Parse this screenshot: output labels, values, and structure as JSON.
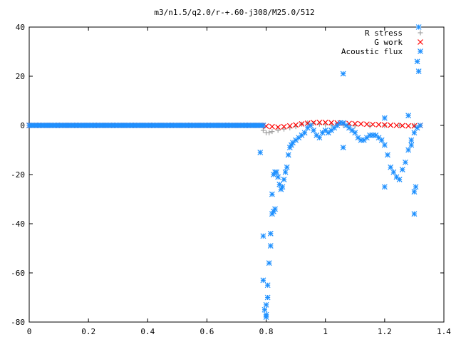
{
  "chart_data": {
    "type": "scatter",
    "title": "m3/n1.5/q2.0/r-+.60-j308/M25.0/512",
    "xlabel": "",
    "ylabel": "",
    "xlim": [
      0,
      1.4
    ],
    "ylim": [
      -80,
      40
    ],
    "grid": false,
    "legend_position": "top-right",
    "x_ticks": [
      "0",
      "0.2",
      "0.4",
      "0.6",
      "0.8",
      "1",
      "1.2",
      "1.4"
    ],
    "y_ticks": [
      "40",
      "20",
      "0",
      "-20",
      "-40",
      "-60",
      "-80"
    ],
    "series": [
      {
        "name": "R stress",
        "marker": "plus",
        "color": "#a0a0a0",
        "points": [
          [
            0.0,
            0
          ],
          [
            0.1,
            0
          ],
          [
            0.2,
            0
          ],
          [
            0.3,
            0
          ],
          [
            0.4,
            0
          ],
          [
            0.5,
            0
          ],
          [
            0.6,
            0
          ],
          [
            0.7,
            0
          ],
          [
            0.78,
            0
          ],
          [
            0.79,
            -2
          ],
          [
            0.8,
            -3
          ],
          [
            0.81,
            -3
          ],
          [
            0.82,
            -2.5
          ],
          [
            0.84,
            -2
          ],
          [
            0.86,
            -1.5
          ],
          [
            0.88,
            -1
          ],
          [
            0.9,
            -0.5
          ],
          [
            0.92,
            0.5
          ],
          [
            0.94,
            1
          ],
          [
            0.96,
            0.8
          ],
          [
            0.98,
            0.5
          ],
          [
            1.0,
            0.3
          ],
          [
            1.02,
            0.2
          ],
          [
            1.04,
            0.2
          ],
          [
            1.06,
            0.1
          ],
          [
            1.08,
            0
          ],
          [
            1.1,
            -0.2
          ],
          [
            1.15,
            -0.2
          ],
          [
            1.2,
            -0.1
          ],
          [
            1.25,
            0
          ],
          [
            1.3,
            0
          ],
          [
            1.32,
            0
          ]
        ]
      },
      {
        "name": "G work",
        "marker": "cross",
        "color": "#ff0000",
        "points": [
          [
            0.0,
            0
          ],
          [
            0.1,
            0
          ],
          [
            0.2,
            0
          ],
          [
            0.3,
            0
          ],
          [
            0.4,
            0
          ],
          [
            0.5,
            0
          ],
          [
            0.6,
            0
          ],
          [
            0.7,
            0
          ],
          [
            0.79,
            0
          ],
          [
            0.8,
            -0.3
          ],
          [
            0.82,
            -0.5
          ],
          [
            0.84,
            -0.7
          ],
          [
            0.86,
            -0.5
          ],
          [
            0.88,
            -0.2
          ],
          [
            0.9,
            0.2
          ],
          [
            0.92,
            0.6
          ],
          [
            0.94,
            0.9
          ],
          [
            0.96,
            1.1
          ],
          [
            0.98,
            1.2
          ],
          [
            1.0,
            1.2
          ],
          [
            1.02,
            1.1
          ],
          [
            1.04,
            1.0
          ],
          [
            1.06,
            0.9
          ],
          [
            1.08,
            0.8
          ],
          [
            1.1,
            0.7
          ],
          [
            1.12,
            0.6
          ],
          [
            1.14,
            0.5
          ],
          [
            1.16,
            0.4
          ],
          [
            1.18,
            0.3
          ],
          [
            1.2,
            0.2
          ],
          [
            1.22,
            0.1
          ],
          [
            1.24,
            0
          ],
          [
            1.26,
            -0.1
          ],
          [
            1.28,
            -0.2
          ],
          [
            1.3,
            -0.2
          ],
          [
            1.32,
            0
          ]
        ]
      },
      {
        "name": "Acoustic flux",
        "marker": "star",
        "color": "#1e90ff",
        "points": [
          [
            0.0,
            0
          ],
          [
            0.05,
            0
          ],
          [
            0.1,
            0
          ],
          [
            0.15,
            0
          ],
          [
            0.2,
            0
          ],
          [
            0.25,
            0
          ],
          [
            0.3,
            0
          ],
          [
            0.35,
            0
          ],
          [
            0.4,
            0
          ],
          [
            0.45,
            0
          ],
          [
            0.5,
            0
          ],
          [
            0.55,
            0
          ],
          [
            0.6,
            0
          ],
          [
            0.65,
            0
          ],
          [
            0.7,
            0
          ],
          [
            0.75,
            0
          ],
          [
            0.79,
            0
          ],
          [
            0.78,
            -11
          ],
          [
            0.79,
            -45
          ],
          [
            0.79,
            -63
          ],
          [
            0.795,
            -75
          ],
          [
            0.8,
            -78
          ],
          [
            0.8,
            -77
          ],
          [
            0.8,
            -73
          ],
          [
            0.805,
            -70
          ],
          [
            0.805,
            -65
          ],
          [
            0.81,
            -56
          ],
          [
            0.815,
            -49
          ],
          [
            0.815,
            -44
          ],
          [
            0.82,
            -36
          ],
          [
            0.825,
            -35
          ],
          [
            0.83,
            -34
          ],
          [
            0.82,
            -28
          ],
          [
            0.825,
            -20
          ],
          [
            0.83,
            -19
          ],
          [
            0.835,
            -19
          ],
          [
            0.84,
            -21
          ],
          [
            0.845,
            -24
          ],
          [
            0.85,
            -26
          ],
          [
            0.855,
            -25
          ],
          [
            0.86,
            -22
          ],
          [
            0.865,
            -19
          ],
          [
            0.87,
            -17
          ],
          [
            0.875,
            -12
          ],
          [
            0.88,
            -9
          ],
          [
            0.885,
            -8
          ],
          [
            0.89,
            -7
          ],
          [
            0.9,
            -6
          ],
          [
            0.91,
            -5
          ],
          [
            0.92,
            -4
          ],
          [
            0.93,
            -3
          ],
          [
            0.94,
            -1
          ],
          [
            0.95,
            0
          ],
          [
            0.96,
            -2
          ],
          [
            0.97,
            -4
          ],
          [
            0.98,
            -5
          ],
          [
            0.99,
            -3
          ],
          [
            1.0,
            -2
          ],
          [
            1.01,
            -3
          ],
          [
            1.02,
            -2
          ],
          [
            1.03,
            -1
          ],
          [
            1.04,
            0
          ],
          [
            1.05,
            1
          ],
          [
            1.06,
            1
          ],
          [
            1.07,
            0
          ],
          [
            1.08,
            -1
          ],
          [
            1.09,
            -2
          ],
          [
            1.1,
            -3
          ],
          [
            1.11,
            -5
          ],
          [
            1.12,
            -6
          ],
          [
            1.13,
            -6
          ],
          [
            1.14,
            -5
          ],
          [
            1.15,
            -4
          ],
          [
            1.16,
            -4
          ],
          [
            1.17,
            -4
          ],
          [
            1.18,
            -5
          ],
          [
            1.19,
            -6
          ],
          [
            1.2,
            -8
          ],
          [
            1.21,
            -12
          ],
          [
            1.22,
            -17
          ],
          [
            1.23,
            -19
          ],
          [
            1.24,
            -21
          ],
          [
            1.25,
            -22
          ],
          [
            1.26,
            -18
          ],
          [
            1.27,
            -15
          ],
          [
            1.28,
            -10
          ],
          [
            1.29,
            -6
          ],
          [
            1.3,
            -3
          ],
          [
            1.31,
            -1
          ],
          [
            1.32,
            0
          ],
          [
            1.06,
            21
          ],
          [
            1.06,
            -9
          ],
          [
            1.2,
            3
          ],
          [
            1.2,
            -25
          ],
          [
            1.28,
            4
          ],
          [
            1.29,
            -8
          ],
          [
            1.3,
            -27
          ],
          [
            1.3,
            -36
          ],
          [
            1.305,
            -25
          ],
          [
            1.31,
            26
          ],
          [
            1.315,
            22
          ],
          [
            1.315,
            40
          ]
        ]
      }
    ]
  }
}
